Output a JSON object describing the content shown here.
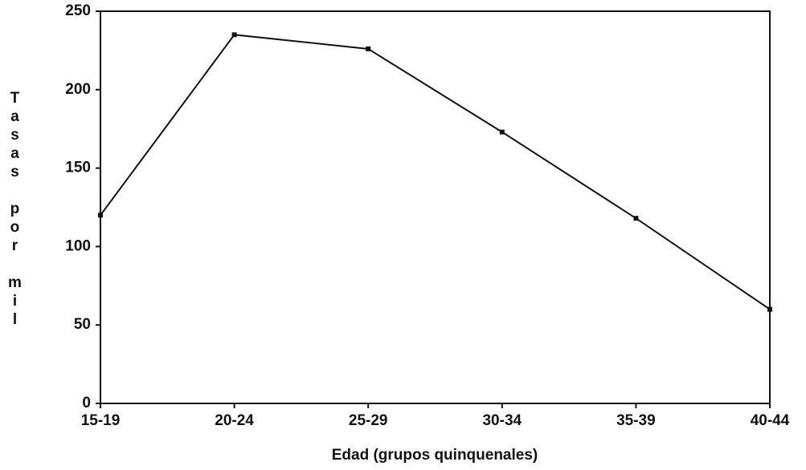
{
  "chart_data": {
    "type": "line",
    "categories": [
      "15-19",
      "20-24",
      "25-29",
      "30-34",
      "35-39",
      "40-44"
    ],
    "series": [
      {
        "name": null,
        "color": "#111111",
        "values": [
          120,
          235,
          226,
          173,
          118,
          60
        ]
      }
    ],
    "ylim": [
      0,
      250
    ],
    "yticks": [
      0,
      50,
      100,
      150,
      200,
      250
    ],
    "x_label": "Edad (grupos quinquenales)",
    "y_label": "Tasas por mil",
    "grid": false
  }
}
